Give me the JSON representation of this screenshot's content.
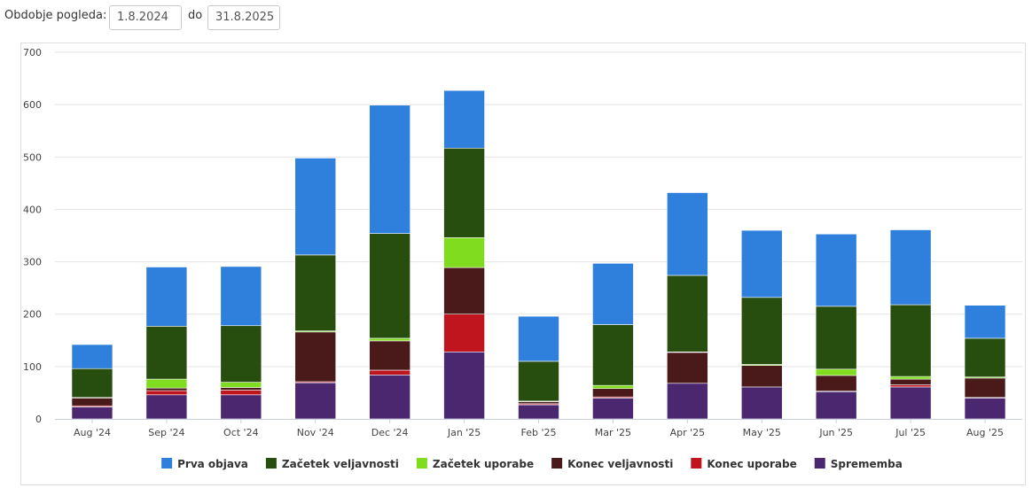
{
  "filter": {
    "label": "Obdobje pogleda:",
    "from_value": "1.8.2024",
    "to_label": "do",
    "to_value": "31.8.2025"
  },
  "colors": {
    "Prva objava": "#2f80dc",
    "Začetek veljavnosti": "#274d0f",
    "Začetek uporabe": "#7fdc1e",
    "Konec veljavnosti": "#4a1a1a",
    "Konec uporabe": "#c0141e",
    "Sprememba": "#4b2770"
  },
  "chart_data": {
    "type": "bar",
    "stacked": true,
    "categories": [
      "Aug '24",
      "Sep '24",
      "Oct '24",
      "Nov '24",
      "Dec '24",
      "Jan '25",
      "Feb '25",
      "Mar '25",
      "Apr '25",
      "May '25",
      "Jun '25",
      "Jul '25",
      "Aug '25"
    ],
    "series": [
      {
        "name": "Sprememba",
        "values": [
          23,
          46,
          46,
          69,
          84,
          128,
          27,
          40,
          68,
          61,
          52,
          61,
          40
        ]
      },
      {
        "name": "Konec uporabe",
        "values": [
          2,
          8,
          9,
          2,
          9,
          72,
          2,
          2,
          0,
          0,
          1,
          4,
          1
        ]
      },
      {
        "name": "Konec veljavnosti",
        "values": [
          15,
          5,
          5,
          95,
          56,
          89,
          4,
          16,
          59,
          41,
          30,
          11,
          37
        ]
      },
      {
        "name": "Začetek uporabe",
        "values": [
          1,
          17,
          10,
          2,
          5,
          57,
          1,
          6,
          1,
          2,
          12,
          5,
          2
        ]
      },
      {
        "name": "Začetek veljavnosti",
        "values": [
          55,
          101,
          108,
          145,
          200,
          171,
          76,
          116,
          146,
          128,
          120,
          137,
          74
        ]
      },
      {
        "name": "Prva objava",
        "values": [
          46,
          113,
          113,
          185,
          245,
          110,
          86,
          117,
          158,
          128,
          138,
          143,
          63
        ]
      }
    ],
    "legend_order": [
      "Prva objava",
      "Začetek veljavnosti",
      "Začetek uporabe",
      "Konec veljavnosti",
      "Konec uporabe",
      "Sprememba"
    ],
    "yticks": [
      0,
      100,
      200,
      300,
      400,
      500,
      600,
      700
    ],
    "ylim": [
      0,
      700
    ],
    "grid": true,
    "legend_position": "bottom"
  }
}
